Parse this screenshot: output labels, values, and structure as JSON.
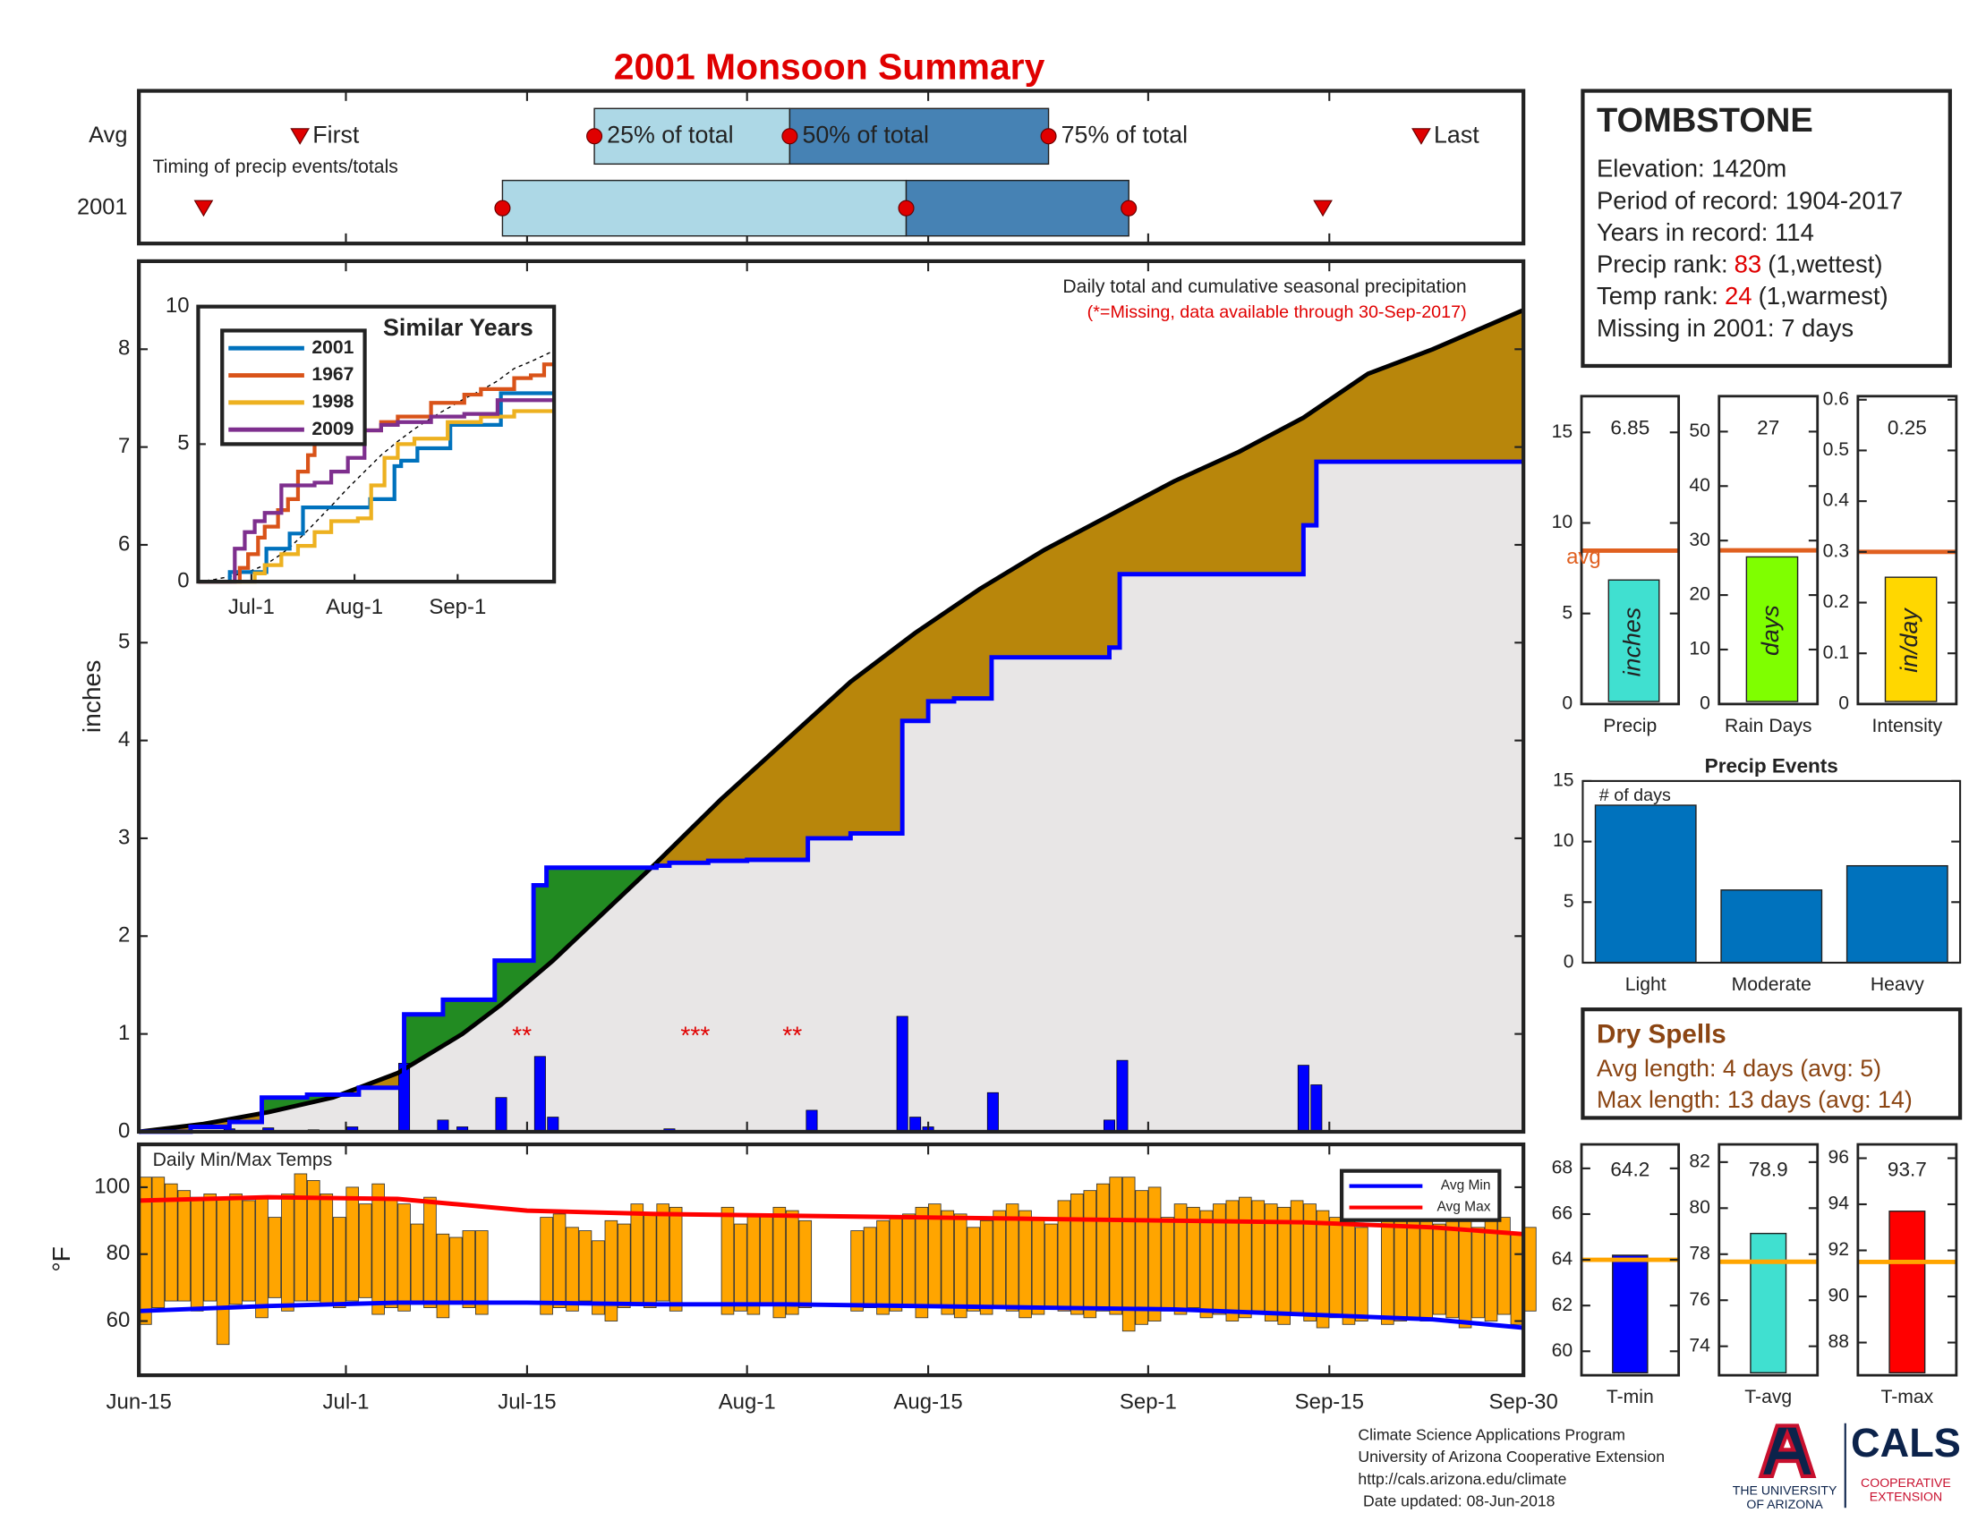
{
  "title": "2001 Monsoon Summary",
  "chart_data": [
    {
      "type": "timeline",
      "annotation": "Timing of precip events/totals",
      "xlim": [
        0,
        107
      ],
      "rows": [
        {
          "name": "Avg",
          "first": 12.45,
          "q25": 35.2,
          "q50": 50.3,
          "q75": 70.3,
          "last": 99.1
        },
        {
          "name": "2001",
          "first": 5,
          "q25": 28.1,
          "q50": 59.3,
          "q75": 76.5,
          "last": 91.5
        }
      ],
      "marker_labels": {
        "first": "First",
        "q25": "25% of total",
        "q50": "50% of total",
        "q75": "75% of total",
        "last": "Last"
      },
      "light_color": "#add8e6",
      "dark_color": "#4682b4",
      "marker_color": "#e00000"
    },
    {
      "type": "area",
      "title": "Daily total and cumulative seasonal precipitation",
      "subtitle": "(*=Missing, data available through 30-Sep-2017)",
      "ylabel": "inches",
      "xlim": [
        0,
        107
      ],
      "ylim": [
        0,
        8.9
      ],
      "yticks": [
        0,
        1,
        2,
        3,
        4,
        5,
        6,
        7,
        8
      ],
      "xticks": [
        {
          "value": 0,
          "label": "Jun-15"
        },
        {
          "value": 16,
          "label": "Jul-1"
        },
        {
          "value": 30,
          "label": "Jul-15"
        },
        {
          "value": 47,
          "label": "Aug-1"
        },
        {
          "value": 61,
          "label": "Aug-15"
        },
        {
          "value": 78,
          "label": "Sep-1"
        },
        {
          "value": 92,
          "label": "Sep-15"
        },
        {
          "value": 107,
          "label": "Sep-30"
        }
      ],
      "cumulative": {
        "color": "#0000ff",
        "x": [
          0,
          4,
          7,
          9.5,
          13,
          17,
          20.5,
          23.5,
          27.5,
          30.5,
          31.5,
          40,
          41,
          44,
          47,
          51.7,
          55,
          59,
          61,
          63,
          65.9,
          75,
          75.8,
          90,
          91,
          107
        ],
        "values": [
          0,
          0.05,
          0.1,
          0.35,
          0.38,
          0.45,
          1.2,
          1.35,
          1.75,
          2.52,
          2.7,
          2.72,
          2.75,
          2.77,
          2.78,
          3.0,
          3.05,
          4.2,
          4.4,
          4.43,
          4.85,
          4.95,
          5.7,
          6.2,
          6.85,
          6.85
        ]
      },
      "average": {
        "color": "#000000",
        "x": [
          0,
          5,
          10,
          15,
          20,
          25,
          28,
          32,
          36,
          40,
          45,
          50,
          55,
          60,
          65,
          70,
          75,
          80,
          85,
          90,
          95,
          100,
          107
        ],
        "values": [
          0,
          0.08,
          0.2,
          0.35,
          0.6,
          1.0,
          1.3,
          1.75,
          2.25,
          2.75,
          3.4,
          4.0,
          4.6,
          5.1,
          5.55,
          5.95,
          6.3,
          6.65,
          6.95,
          7.3,
          7.75,
          8.0,
          8.4
        ]
      },
      "daily": {
        "color": "#0000ff",
        "x": [
          7,
          10,
          13.5,
          16.5,
          20.5,
          23.5,
          25,
          28,
          31,
          32,
          41,
          52,
          59,
          60,
          61,
          66,
          75,
          76,
          90,
          91
        ],
        "values": [
          0.03,
          0.04,
          0.02,
          0.05,
          0.7,
          0.12,
          0.05,
          0.35,
          0.77,
          0.15,
          0.03,
          0.22,
          1.18,
          0.15,
          0.05,
          0.4,
          0.12,
          0.73,
          0.68,
          0.48
        ]
      },
      "above_color": "#228b22",
      "below_color": "#b8860b",
      "background": "#e8e6e6",
      "missing": [
        {
          "x": 29.6,
          "label": "**"
        },
        {
          "x": 43,
          "label": "***"
        },
        {
          "x": 50.5,
          "label": "**"
        }
      ],
      "missing_color": "#e00000"
    },
    {
      "type": "line",
      "title": "Similar Years",
      "xlim": [
        0,
        107
      ],
      "ylim": [
        0,
        10
      ],
      "yticks": [
        0,
        5,
        10
      ],
      "xticks": [
        {
          "value": 16,
          "label": "Jul-1"
        },
        {
          "value": 47,
          "label": "Aug-1"
        },
        {
          "value": 78,
          "label": "Sep-1"
        }
      ],
      "series": [
        {
          "name": "2001",
          "color": "#0072bd",
          "x": [
            0,
            9.5,
            20.5,
            27.5,
            31.5,
            51.7,
            59,
            61,
            65.9,
            75.8,
            91,
            107
          ],
          "values": [
            0,
            0.35,
            1.2,
            1.75,
            2.7,
            3.0,
            4.2,
            4.4,
            4.85,
            5.7,
            6.85,
            6.85
          ]
        },
        {
          "name": "1967",
          "color": "#d95319",
          "x": [
            0,
            12.5,
            15,
            18,
            20,
            24,
            27,
            30,
            33,
            35,
            45,
            55,
            60,
            70,
            80,
            85,
            95,
            100,
            104,
            107
          ],
          "values": [
            0,
            0.5,
            1,
            1.6,
            2,
            2.6,
            3,
            4,
            4.6,
            5,
            5.5,
            5.8,
            6,
            6.5,
            6.8,
            7,
            7.4,
            7.5,
            7.9,
            7.9
          ]
        },
        {
          "name": "1998",
          "color": "#edb120",
          "x": [
            0,
            17,
            20,
            25,
            30,
            35,
            40,
            48,
            52,
            56,
            60,
            65,
            75,
            85,
            95,
            107
          ],
          "values": [
            0,
            0.3,
            0.6,
            1,
            1.3,
            1.8,
            2.2,
            2.3,
            3.5,
            4.5,
            5,
            5.2,
            5.8,
            6,
            6.2,
            6.2
          ]
        },
        {
          "name": "2009",
          "color": "#7e2f8e",
          "x": [
            0,
            11,
            14,
            17,
            20,
            25,
            35,
            40,
            45,
            50,
            55,
            60,
            70,
            80,
            90,
            107
          ],
          "values": [
            0,
            1.2,
            1.8,
            2.2,
            2.5,
            3.5,
            3.6,
            4,
            4.5,
            5.5,
            5.7,
            5.8,
            6,
            6.1,
            6.6,
            6.6
          ]
        }
      ]
    },
    {
      "type": "single_bar",
      "xlabel": "Precip",
      "ylim": [
        0,
        17
      ],
      "yticks": [
        0,
        5,
        10,
        15
      ],
      "value": 6.85,
      "avg": 8.47,
      "avg_label": "avg",
      "unit": "inches",
      "color": "#40e0d0",
      "avg_color": "#e06020"
    },
    {
      "type": "single_bar",
      "xlabel": "Rain Days",
      "ylim": [
        0,
        56.5
      ],
      "yticks": [
        0,
        10,
        20,
        30,
        40,
        50
      ],
      "value": 27,
      "avg": 28.2,
      "unit": "days",
      "color": "#7fff00",
      "avg_color": "#e06020"
    },
    {
      "type": "single_bar",
      "xlabel": "Intensity",
      "ylim": [
        0,
        0.607
      ],
      "yticks": [
        0,
        0.1,
        0.2,
        0.3,
        0.4,
        0.5,
        0.6
      ],
      "value": 0.25,
      "avg": 0.3,
      "unit": "in/day",
      "color": "#ffd700",
      "avg_color": "#e06020"
    },
    {
      "type": "bar",
      "title": "Precip Events",
      "annotation": "# of days",
      "categories": [
        "Light",
        "Moderate",
        "Heavy"
      ],
      "values": [
        13,
        6,
        8
      ],
      "ylim": [
        0,
        15
      ],
      "yticks": [
        0,
        5,
        10,
        15
      ],
      "color": "#0072bd"
    },
    {
      "type": "range_bar",
      "title": "Daily Min/Max Temps",
      "ylabel": "°F",
      "xlim": [
        0,
        107
      ],
      "ylim": [
        43.8,
        112.8
      ],
      "yticks": [
        60,
        80,
        100
      ],
      "color": "#ffa500",
      "legend": "upper right",
      "max": [
        103,
        103,
        101,
        99,
        97,
        98,
        97,
        98,
        96,
        97,
        91,
        98,
        104,
        102,
        98,
        91,
        100,
        95,
        101,
        97,
        95,
        89,
        97,
        86,
        85,
        87,
        87,
        null,
        null,
        null,
        null,
        91,
        92,
        88,
        87,
        84,
        90,
        89,
        95,
        92,
        95,
        94,
        null,
        null,
        null,
        94,
        89,
        92,
        92,
        94,
        93,
        90,
        null,
        null,
        null,
        87,
        88,
        90,
        91,
        92,
        94,
        95,
        93,
        92,
        88,
        90,
        93,
        95,
        93,
        91,
        89,
        96,
        98,
        99,
        101,
        103,
        103,
        99,
        100,
        91,
        95,
        94,
        93,
        95,
        96,
        97,
        96,
        95,
        94,
        96,
        95,
        93,
        91,
        90,
        88,
        null,
        94,
        93,
        95,
        90,
        89,
        91,
        92,
        88,
        94,
        91,
        86,
        88
      ],
      "min": [
        59,
        64,
        66,
        66,
        63,
        66,
        53,
        65,
        66,
        61,
        67,
        63,
        66,
        66,
        65,
        64,
        66,
        67,
        62,
        64,
        63,
        65,
        64,
        61,
        66,
        64,
        62,
        null,
        null,
        null,
        null,
        62,
        64,
        63,
        66,
        62,
        60,
        64,
        65,
        64,
        66,
        63,
        null,
        null,
        null,
        62,
        63,
        62,
        65,
        61,
        62,
        64,
        null,
        null,
        null,
        63,
        64,
        62,
        63,
        65,
        61,
        64,
        62,
        61,
        63,
        62,
        64,
        63,
        61,
        62,
        64,
        63,
        62,
        61,
        63,
        62,
        57,
        59,
        60,
        63,
        62,
        64,
        61,
        62,
        60,
        61,
        63,
        60,
        59,
        62,
        60,
        58,
        61,
        59,
        60,
        null,
        59,
        60,
        61,
        60,
        62,
        61,
        58,
        61,
        60,
        62,
        59,
        63
      ],
      "series": [
        {
          "name": "Avg Min",
          "color": "#0000ff",
          "x": [
            0,
            10,
            20,
            30,
            40,
            50,
            60,
            70,
            80,
            90,
            100,
            107
          ],
          "values": [
            63,
            64.5,
            65.5,
            65.5,
            65,
            65,
            64.5,
            64,
            63.5,
            62,
            60.5,
            58
          ]
        },
        {
          "name": "Avg Max",
          "color": "#ff0000",
          "x": [
            0,
            10,
            20,
            30,
            40,
            50,
            60,
            70,
            80,
            90,
            100,
            107
          ],
          "values": [
            96,
            97,
            96.5,
            93,
            92,
            91.5,
            91,
            90.5,
            90,
            89.5,
            88,
            86
          ]
        }
      ]
    },
    {
      "type": "single_bar",
      "xlabel": "T-min",
      "ylim": [
        58.95,
        69.05
      ],
      "yticks": [
        60,
        62,
        64,
        66,
        68
      ],
      "value": 64.2,
      "avg": 64,
      "color": "#0000ff",
      "avg_color": "#ffa500"
    },
    {
      "type": "single_bar",
      "xlabel": "T-avg",
      "ylim": [
        72.74,
        82.77
      ],
      "yticks": [
        74,
        76,
        78,
        80,
        82
      ],
      "value": 78.9,
      "avg": 77.67,
      "color": "#40e0d0",
      "avg_color": "#ffa500"
    },
    {
      "type": "single_bar",
      "xlabel": "T-max",
      "ylim": [
        86.58,
        96.6
      ],
      "yticks": [
        88,
        90,
        92,
        94,
        96
      ],
      "value": 93.7,
      "avg": 91.5,
      "color": "#ff0000",
      "avg_color": "#ffa500"
    }
  ],
  "station": {
    "name": "TOMBSTONE",
    "lines": [
      {
        "text": "Elevation: 1420m"
      },
      {
        "text": "Period of record: 1904-2017"
      },
      {
        "text": "Years in record: 114"
      },
      {
        "label": "Precip rank:",
        "value": 83,
        "note": "(1,wettest)"
      },
      {
        "label": "Temp rank:",
        "value": 24,
        "note": "(1,warmest)"
      },
      {
        "text": "Missing in 2001: 7 days"
      }
    ]
  },
  "dry_spells": {
    "title": "Dry Spells",
    "lines": [
      "Avg length: 4 days (avg: 5)",
      "Max length: 13 days (avg: 14)"
    ]
  },
  "footer": {
    "lines": [
      "Climate Science Applications Program",
      "University of Arizona Cooperative Extension",
      "http://cals.arizona.edu/climate",
      "Date updated: 08-Jun-2018"
    ],
    "university": [
      "THE UNIVERSITY",
      "OF ARIZONA"
    ],
    "cals": "CALS",
    "extension": [
      "COOPERATIVE",
      "EXTENSION"
    ]
  }
}
